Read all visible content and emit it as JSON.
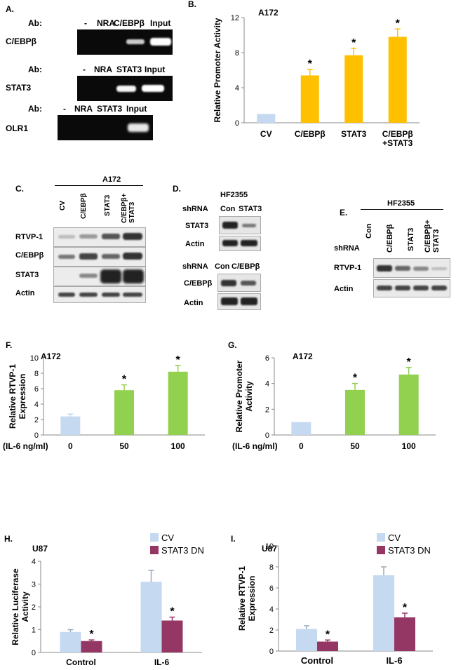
{
  "panels": {
    "A": {
      "label": "A.",
      "rows": [
        {
          "ab": "Ab:",
          "lanes": [
            "-",
            "NRA",
            "C/EBPβ",
            "Input"
          ],
          "target": "C/EBPβ"
        },
        {
          "ab": "Ab:",
          "lanes": [
            "-",
            "NRA",
            "STAT3",
            "Input"
          ],
          "target": "STAT3"
        },
        {
          "ab": "Ab:",
          "lanes": [
            "-",
            "NRA",
            "STAT3",
            "Input"
          ],
          "target": "OLR1"
        }
      ]
    },
    "C": {
      "label": "C.",
      "cell": "A172",
      "lanes": [
        "CV",
        "C/EBPβ",
        "STAT3",
        "C/EBPβ+ STAT3"
      ],
      "rows": [
        "RTVP-1",
        "C/EBPβ",
        "STAT3",
        "Actin"
      ]
    },
    "D": {
      "label": "D.",
      "cell": "HF2355",
      "top": {
        "shrna": "shRNA",
        "lanes": [
          "Con",
          "STAT3"
        ],
        "rows": [
          "STAT3",
          "Actin"
        ]
      },
      "bottom": {
        "shrna": "shRNA",
        "lanes": [
          "Con",
          "C/EBPβ"
        ],
        "rows": [
          "C/EBPβ",
          "Actin"
        ]
      }
    },
    "E": {
      "label": "E.",
      "cell": "HF2355",
      "shrna": "shRNA",
      "lanes": [
        "Con",
        "C/EBPβ",
        "STAT3",
        "C/EBPβ+ STAT3"
      ],
      "rows": [
        "RTVP-1",
        "Actin"
      ]
    }
  },
  "chart_data": [
    {
      "id": "B",
      "panel_label": "B.",
      "type": "bar",
      "cell": "A172",
      "ylabel": "Relative Promoter Activity",
      "categories": [
        "CV",
        "C/EBPβ",
        "STAT3",
        "C/EBPβ\n+STAT3"
      ],
      "values": [
        1,
        5.4,
        7.7,
        9.8
      ],
      "errors": [
        0,
        0.7,
        0.8,
        0.9
      ],
      "significant": [
        false,
        true,
        true,
        true
      ],
      "ylim": [
        0,
        12
      ],
      "yticks": [
        0,
        4,
        8,
        12
      ],
      "colors": [
        "#c5d9f1",
        "#ffc000",
        "#ffc000",
        "#ffc000"
      ]
    },
    {
      "id": "F",
      "panel_label": "F.",
      "type": "bar",
      "cell": "A172",
      "ylabel": "Relative RTVP-1 Expression",
      "categories": [
        "0",
        "50",
        "100"
      ],
      "xprefix": "(IL-6 ng/ml)",
      "values": [
        2.4,
        5.8,
        8.2
      ],
      "errors": [
        0.3,
        0.7,
        0.8
      ],
      "significant": [
        false,
        true,
        true
      ],
      "ylim": [
        0,
        10
      ],
      "yticks": [
        0,
        2,
        4,
        6,
        8,
        10
      ],
      "colors": [
        "#c5d9f1",
        "#92d050",
        "#92d050"
      ]
    },
    {
      "id": "G",
      "panel_label": "G.",
      "type": "bar",
      "cell": "A172",
      "ylabel": "Relative Promoter Activity",
      "categories": [
        "0",
        "50",
        "100"
      ],
      "xprefix": "(IL-6 ng/ml)",
      "values": [
        1.0,
        3.5,
        4.7
      ],
      "errors": [
        0,
        0.5,
        0.55
      ],
      "significant": [
        false,
        true,
        true
      ],
      "ylim": [
        0,
        6
      ],
      "yticks": [
        0,
        2,
        4,
        6
      ],
      "colors": [
        "#c5d9f1",
        "#92d050",
        "#92d050"
      ]
    },
    {
      "id": "H",
      "panel_label": "H.",
      "type": "bar",
      "cell": "U87",
      "ylabel": "Relative Luciferase Activity",
      "categories": [
        "Control",
        "IL-6"
      ],
      "series": [
        {
          "name": "CV",
          "color": "#c5d9f1",
          "values": [
            0.9,
            3.1
          ],
          "errors": [
            0.1,
            0.5
          ],
          "significant": [
            false,
            false
          ]
        },
        {
          "name": "STAT3 DN",
          "color": "#953765",
          "values": [
            0.5,
            1.4
          ],
          "errors": [
            0.05,
            0.15
          ],
          "significant": [
            true,
            true
          ]
        }
      ],
      "ylim": [
        0,
        4
      ],
      "yticks": [
        0,
        1,
        2,
        3,
        4
      ],
      "legend": "top-right"
    },
    {
      "id": "I",
      "panel_label": "I.",
      "type": "bar",
      "cell": "U87",
      "ylabel": "Relative RTVP-1 Expression",
      "categories": [
        "Control",
        "IL-6"
      ],
      "series": [
        {
          "name": "CV",
          "color": "#c5d9f1",
          "values": [
            2.1,
            7.2
          ],
          "errors": [
            0.3,
            0.8
          ],
          "significant": [
            false,
            false
          ]
        },
        {
          "name": "STAT3 DN",
          "color": "#953765",
          "values": [
            0.9,
            3.2
          ],
          "errors": [
            0.15,
            0.4
          ],
          "significant": [
            true,
            true
          ]
        }
      ],
      "ylim": [
        0,
        10
      ],
      "yticks": [
        0,
        2,
        4,
        6,
        8,
        10
      ],
      "legend": "top-right"
    }
  ]
}
